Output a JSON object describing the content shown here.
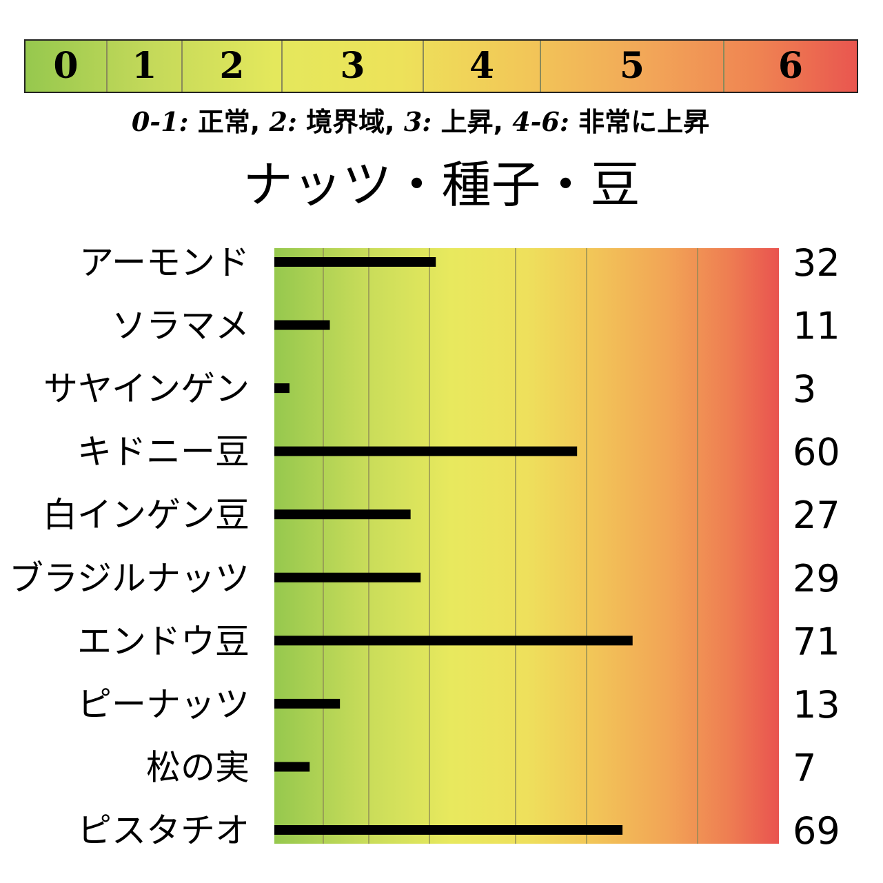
{
  "legend": {
    "scale": [
      "0",
      "1",
      "2",
      "3",
      "4",
      "5",
      "6"
    ],
    "description": [
      {
        "num": "0-1:",
        "text": " 正常, "
      },
      {
        "num": "2:",
        "text": " 境界域, "
      },
      {
        "num": "3:",
        "text": " 上昇, "
      },
      {
        "num": "4-6:",
        "text": " 非常に上昇"
      }
    ]
  },
  "chart_data": {
    "type": "bar",
    "orientation": "horizontal",
    "title": "ナッツ・種子・豆",
    "categories": [
      "アーモンド",
      "ソラマメ",
      "サヤインゲン",
      "キドニー豆",
      "白インゲン豆",
      "ブラジルナッツ",
      "エンドウ豆",
      "ピーナッツ",
      "松の実",
      "ピスタチオ"
    ],
    "values": [
      32,
      11,
      3,
      60,
      27,
      29,
      71,
      13,
      7,
      69
    ],
    "value_labels": [
      "32",
      "11",
      "3",
      "60",
      "27",
      "29",
      "71",
      "13",
      "7",
      "69"
    ],
    "xlim": [
      0,
      100
    ],
    "grid": true,
    "bar_color": "#000000",
    "gradient_colors": [
      "#96c84e",
      "#e4e85c",
      "#f2c758",
      "#f2a658",
      "#e9564f"
    ]
  }
}
